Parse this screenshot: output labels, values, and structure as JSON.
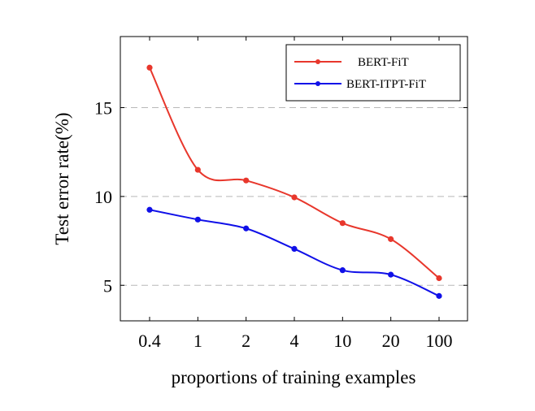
{
  "chart_data": {
    "type": "line",
    "categories": [
      "0.4",
      "1",
      "2",
      "4",
      "10",
      "20",
      "100"
    ],
    "series": [
      {
        "name": "BERT-FiT",
        "color": "#e8372c",
        "values": [
          17.25,
          11.5,
          10.9,
          9.95,
          8.5,
          7.6,
          5.4
        ]
      },
      {
        "name": "BERT-ITPT-FiT",
        "color": "#1010e8",
        "values": [
          9.25,
          8.7,
          8.2,
          7.05,
          5.85,
          5.6,
          4.4
        ]
      }
    ],
    "xlabel": "proportions of training examples",
    "ylabel": "Test error rate(%)",
    "yticks": [
      5,
      10,
      15
    ],
    "ylim": [
      3.0,
      19.0
    ],
    "grid": "horizontal dashed at y ticks",
    "legend_position": "top-right"
  }
}
